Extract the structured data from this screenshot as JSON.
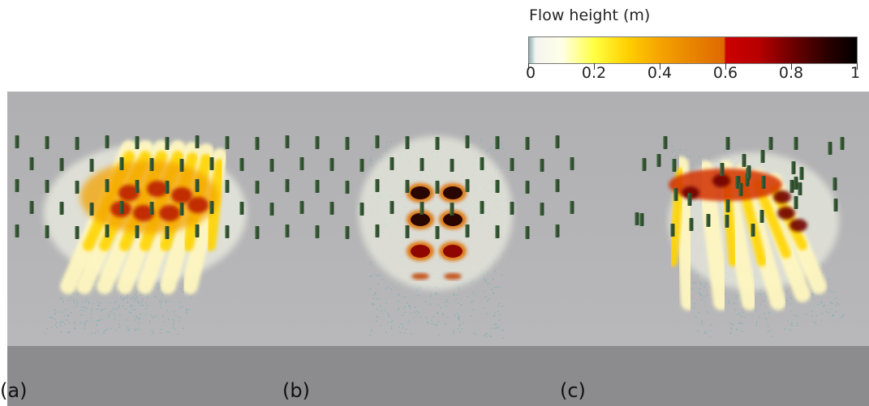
{
  "legend": {
    "title": "Flow height (m)",
    "ticks": [
      "0",
      "0.2",
      "0.4",
      "0.6",
      "0.8",
      "1"
    ],
    "range": [
      0,
      1
    ],
    "colormap": [
      {
        "at": 0.0,
        "color": "#8fb0b3"
      },
      {
        "at": 0.02,
        "color": "#f4f4f0"
      },
      {
        "at": 0.1,
        "color": "#ffffe8"
      },
      {
        "at": 0.2,
        "color": "#ffff40"
      },
      {
        "at": 0.3,
        "color": "#ffd000"
      },
      {
        "at": 0.4,
        "color": "#f5a300"
      },
      {
        "at": 0.5,
        "color": "#e88400"
      },
      {
        "at": 0.595,
        "color": "#e06800"
      },
      {
        "at": 0.6,
        "color": "#cc0000"
      },
      {
        "at": 0.7,
        "color": "#b80000"
      },
      {
        "at": 0.8,
        "color": "#700000"
      },
      {
        "at": 0.9,
        "color": "#300000"
      },
      {
        "at": 1.0,
        "color": "#000000"
      }
    ]
  },
  "panels": [
    {
      "label": "(a)",
      "description_layout": "diagonal obstacles"
    },
    {
      "label": "(b)",
      "description_layout": "aligned obstacles"
    },
    {
      "label": "(c)",
      "description_layout": "random obstacles"
    }
  ],
  "colors": {
    "ground": "#b4b4b6",
    "ground_front": "#8b8b8d",
    "obstacle": "#2f4a2f",
    "obstacle_light": "#3f6a3a",
    "particle": "#7fb0b0"
  }
}
